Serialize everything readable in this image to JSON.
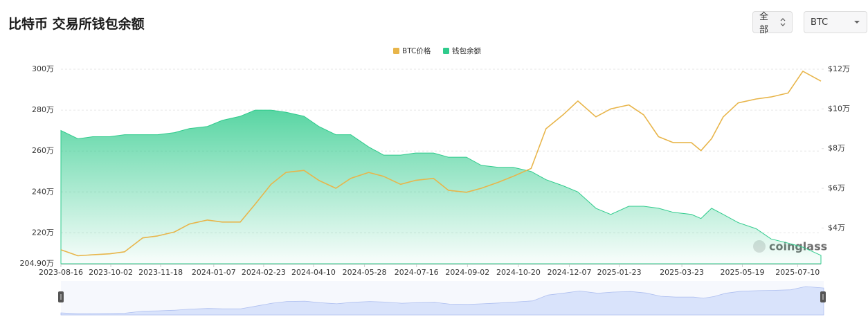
{
  "header": {
    "title": "比特币 交易所钱包余额"
  },
  "controls": {
    "range": "全部",
    "coin": "BTC"
  },
  "chart_data": {
    "type": "line",
    "x": [
      "2023-08-16",
      "2023-09-01",
      "2023-09-15",
      "2023-10-01",
      "2023-10-15",
      "2023-11-01",
      "2023-11-15",
      "2023-12-01",
      "2023-12-15",
      "2024-01-01",
      "2024-01-15",
      "2024-02-01",
      "2024-02-15",
      "2024-03-01",
      "2024-03-15",
      "2024-04-01",
      "2024-04-15",
      "2024-05-01",
      "2024-05-15",
      "2024-06-01",
      "2024-06-15",
      "2024-07-01",
      "2024-07-15",
      "2024-08-01",
      "2024-08-15",
      "2024-09-01",
      "2024-09-15",
      "2024-10-01",
      "2024-10-15",
      "2024-11-01",
      "2024-11-15",
      "2024-12-01",
      "2024-12-15",
      "2025-01-01",
      "2025-01-15",
      "2025-02-01",
      "2025-02-15",
      "2025-03-01",
      "2025-03-15",
      "2025-04-01",
      "2025-04-10",
      "2025-04-20",
      "2025-05-01",
      "2025-05-15",
      "2025-06-01",
      "2025-06-15",
      "2025-07-01",
      "2025-07-15",
      "2025-08-01"
    ],
    "series": [
      {
        "name": "BTC价格",
        "color": "#e8b54a",
        "axis": "y2",
        "type": "line",
        "values": [
          2.9,
          2.6,
          2.65,
          2.7,
          2.8,
          3.5,
          3.6,
          3.8,
          4.2,
          4.4,
          4.3,
          4.3,
          5.2,
          6.2,
          6.8,
          6.9,
          6.4,
          6.0,
          6.5,
          6.8,
          6.6,
          6.2,
          6.4,
          6.5,
          5.9,
          5.8,
          6.0,
          6.3,
          6.6,
          7.0,
          9.0,
          9.7,
          10.4,
          9.6,
          10.0,
          10.2,
          9.7,
          8.6,
          8.3,
          8.3,
          7.9,
          8.5,
          9.6,
          10.3,
          10.5,
          10.6,
          10.8,
          11.9,
          11.4
        ]
      },
      {
        "name": "钱包余额",
        "color": "#2fcb8c",
        "type": "area",
        "values": [
          270,
          266,
          267,
          267,
          268,
          268,
          268,
          269,
          271,
          272,
          275,
          277,
          280,
          280,
          279,
          277,
          272,
          268,
          268,
          262,
          258,
          258,
          259,
          259,
          257,
          257,
          253,
          252,
          252,
          250,
          246,
          243,
          240,
          232,
          229,
          233,
          233,
          232,
          230,
          229,
          227,
          232,
          229,
          225,
          222,
          217,
          215,
          213,
          209
        ]
      }
    ],
    "xlim": [
      "2023-08-16",
      "2025-08-01"
    ],
    "xticks": [
      "2023-08-16",
      "2023-10-02",
      "2023-11-18",
      "2024-01-07",
      "2024-02-23",
      "2024-04-10",
      "2024-05-28",
      "2024-07-16",
      "2024-09-02",
      "2024-10-20",
      "2024-12-07",
      "2025-01-23",
      "2025-03-23",
      "2025-05-19",
      "2025-07-10"
    ],
    "ylim": [
      204.9,
      300
    ],
    "yticks": [
      {
        "value": 204.9,
        "label": "204.90万"
      },
      {
        "value": 220,
        "label": "220万"
      },
      {
        "value": 240,
        "label": "240万"
      },
      {
        "value": 260,
        "label": "260万"
      },
      {
        "value": 280,
        "label": "280万"
      },
      {
        "value": 300,
        "label": "300万"
      }
    ],
    "y2lim": [
      2.2,
      12
    ],
    "y2ticks": [
      {
        "value": 4,
        "label": "$4万"
      },
      {
        "value": 6,
        "label": "$6万"
      },
      {
        "value": 8,
        "label": "$8万"
      },
      {
        "value": 10,
        "label": "$10万"
      },
      {
        "value": 12,
        "label": "$12万"
      }
    ],
    "grid": true,
    "legend": "top",
    "watermark": "coinglass"
  }
}
